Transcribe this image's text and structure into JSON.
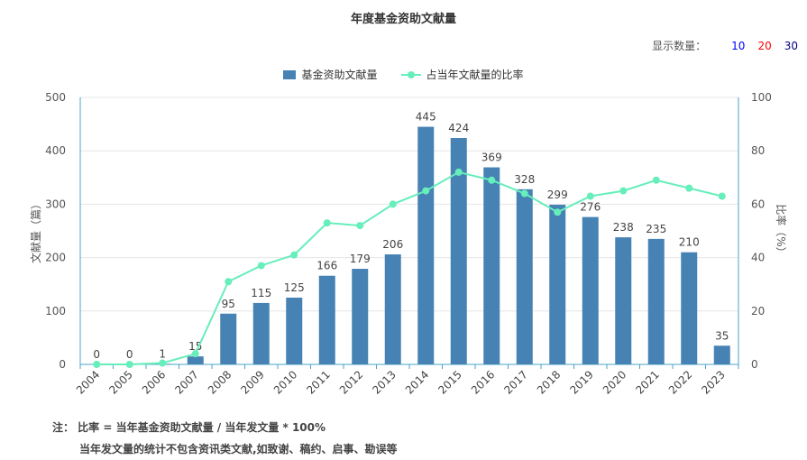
{
  "header": {
    "title": "年度基金资助文献量",
    "count_label": "显示数量：",
    "count_options": [
      {
        "label": "10",
        "color": "#0000ff"
      },
      {
        "label": "20",
        "color": "#ff0000"
      },
      {
        "label": "30",
        "color": "#000080"
      }
    ]
  },
  "legend": {
    "bar_label": "基金资助文献量",
    "line_label": "占当年文献量的比率"
  },
  "colors": {
    "bar": "#4682b4",
    "line": "#66eebb",
    "axis": "#4aa3c8",
    "grid": "#e6e6e6"
  },
  "chart_data": {
    "type": "bar",
    "title": "年度基金资助文献量",
    "categories": [
      "2004",
      "2005",
      "2006",
      "2007",
      "2008",
      "2009",
      "2010",
      "2011",
      "2012",
      "2013",
      "2014",
      "2015",
      "2016",
      "2017",
      "2018",
      "2019",
      "2020",
      "2021",
      "2022",
      "2023"
    ],
    "series": [
      {
        "name": "基金资助文献量",
        "type": "bar",
        "axis": "left",
        "values": [
          0,
          0,
          1,
          15,
          95,
          115,
          125,
          166,
          179,
          206,
          445,
          424,
          369,
          328,
          299,
          276,
          238,
          235,
          210,
          35
        ]
      },
      {
        "name": "占当年文献量的比率",
        "type": "line",
        "axis": "right",
        "values": [
          0,
          0,
          0.5,
          4,
          31,
          37,
          41,
          53,
          52,
          60,
          65,
          72,
          69,
          64,
          57,
          63,
          65,
          69,
          66,
          63
        ]
      }
    ],
    "ylabel": "文献量（篇）",
    "y2label": "比率（%）",
    "ylim": [
      0,
      500
    ],
    "y2lim": [
      0,
      100
    ],
    "yticks": [
      0,
      100,
      200,
      300,
      400,
      500
    ],
    "y2ticks": [
      0,
      20,
      40,
      60,
      80,
      100
    ],
    "grid": true,
    "legend_position": "top-center"
  },
  "notes": {
    "line1": "注：  比率 = 当年基金资助文献量 / 当年发文量 * 100%",
    "line2": "当年发文量的统计不包含资讯类文献,如致谢、稿约、启事、勘误等"
  }
}
